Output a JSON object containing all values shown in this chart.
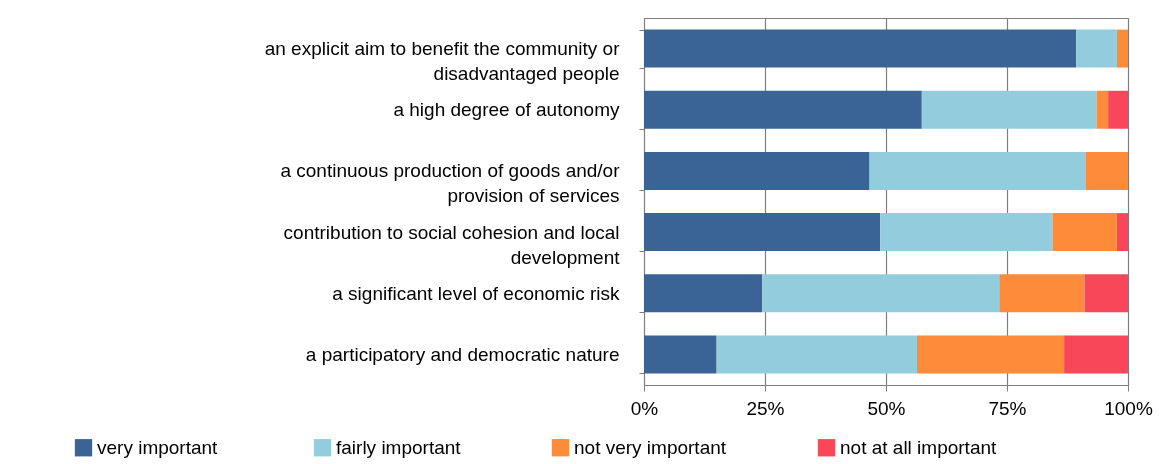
{
  "chart_data": {
    "type": "bar",
    "orientation": "horizontal",
    "stacked": true,
    "categories": [
      "an explicit aim to benefit the community or disadvantaged people",
      "a high degree of autonomy",
      "a continuous production of goods and/or provision of services",
      "contribution to social cohesion and local development",
      "a significant  level of economic risk",
      "a participatory and democratic nature"
    ],
    "series": [
      {
        "name": "very  important",
        "color": "#3b6496",
        "values": [
          89.3,
          57.4,
          46.6,
          48.8,
          24.4,
          15.0
        ]
      },
      {
        "name": "fairly important",
        "color": "#93cddd",
        "values": [
          8.4,
          36.1,
          44.6,
          35.6,
          49.0,
          41.4
        ]
      },
      {
        "name": "not very important",
        "color": "#fd8b3a",
        "values": [
          2.3,
          2.4,
          8.8,
          13.3,
          17.6,
          30.4
        ]
      },
      {
        "name": "not at all important",
        "color": "#f9475a",
        "values": [
          0,
          4.1,
          0,
          2.3,
          9.0,
          13.2
        ]
      }
    ],
    "xlim": [
      0,
      100
    ],
    "xticks": [
      {
        "value": 0,
        "label": "0%"
      },
      {
        "value": 25,
        "label": "25%"
      },
      {
        "value": 50,
        "label": "50%"
      },
      {
        "value": 75,
        "label": "75%"
      },
      {
        "value": 100,
        "label": "100%"
      }
    ],
    "grid": "x",
    "legend": "bottom"
  }
}
